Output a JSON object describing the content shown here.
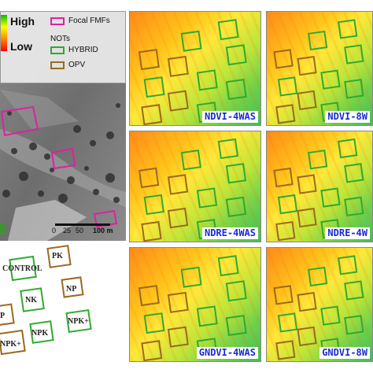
{
  "legend": {
    "high_label": "High",
    "low_label": "Low",
    "focal_label": "Focal FMFs",
    "nots_label": "NOTs",
    "hybrid_label": "HYBRID",
    "opv_label": "OPV",
    "colors": {
      "focal": "#e020a0",
      "hybrid": "#2faa2f",
      "opv": "#9a6a1e"
    }
  },
  "scalebar": {
    "ticks": [
      "0",
      "25",
      "50",
      "100 m"
    ]
  },
  "vi_panels": [
    {
      "label": "NDVI-4WAS"
    },
    {
      "label": "NDVI-8W"
    },
    {
      "label": "NDRE-4WAS"
    },
    {
      "label": "NDRE-4W"
    },
    {
      "label": "GNDVI-4WAS"
    },
    {
      "label": "GNDVI-8W"
    }
  ],
  "plot_labels": [
    "PK",
    "CONTROL",
    "NP",
    "NK",
    "P",
    "NPK",
    "NPK+",
    "NPK+"
  ]
}
